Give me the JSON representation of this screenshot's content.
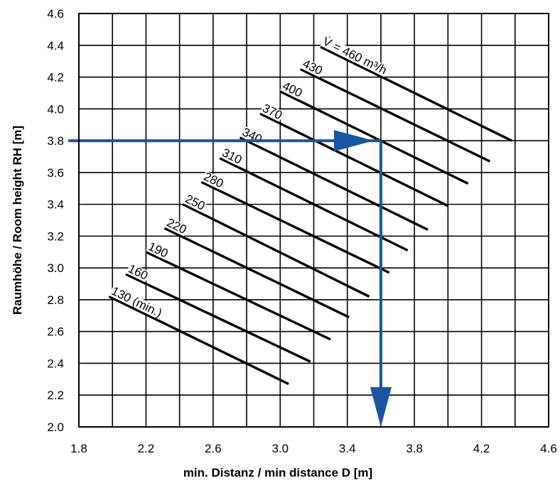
{
  "chart_data": {
    "type": "line",
    "xlabel": "min. Distanz / min distance  D [m]",
    "ylabel": "Raumhöhe / Room height  RH   [m]",
    "xlim": [
      1.8,
      4.6
    ],
    "ylim": [
      2.0,
      4.6
    ],
    "x_ticks": [
      "1.8",
      "2.2",
      "2.6",
      "3.0",
      "3.4",
      "3.8",
      "4.2",
      "4.6"
    ],
    "y_ticks": [
      "2.0",
      "2.2",
      "2.4",
      "2.6",
      "2.8",
      "3.0",
      "3.2",
      "3.4",
      "3.6",
      "3.8",
      "4.0",
      "4.2",
      "4.4",
      "4.6"
    ],
    "grid": true,
    "series": [
      {
        "name": "130 (min.)",
        "x": [
          1.98,
          3.05
        ],
        "y": [
          2.82,
          2.27
        ]
      },
      {
        "name": "160",
        "x": [
          2.08,
          3.18
        ],
        "y": [
          2.96,
          2.41
        ]
      },
      {
        "name": "190",
        "x": [
          2.2,
          3.3
        ],
        "y": [
          3.1,
          2.55
        ]
      },
      {
        "name": "220",
        "x": [
          2.31,
          3.41
        ],
        "y": [
          3.25,
          2.69
        ]
      },
      {
        "name": "250",
        "x": [
          2.42,
          3.53
        ],
        "y": [
          3.4,
          2.82
        ]
      },
      {
        "name": "280",
        "x": [
          2.53,
          3.65
        ],
        "y": [
          3.54,
          2.97
        ]
      },
      {
        "name": "310",
        "x": [
          2.64,
          3.76
        ],
        "y": [
          3.69,
          3.11
        ]
      },
      {
        "name": "340",
        "x": [
          2.76,
          3.88
        ],
        "y": [
          3.82,
          3.24
        ]
      },
      {
        "name": "370",
        "x": [
          2.88,
          4.0
        ],
        "y": [
          3.97,
          3.39
        ]
      },
      {
        "name": "400",
        "x": [
          3.0,
          4.12
        ],
        "y": [
          4.11,
          3.53
        ]
      },
      {
        "name": "430",
        "x": [
          3.12,
          4.25
        ],
        "y": [
          4.25,
          3.67
        ]
      },
      {
        "name": "V̇ = 460 m³/h",
        "x": [
          3.24,
          4.38
        ],
        "y": [
          4.39,
          3.8
        ]
      }
    ],
    "example_path": {
      "color": "#1a56a0",
      "x": [
        1.8,
        3.6,
        3.6
      ],
      "y": [
        3.8,
        3.8,
        2.0
      ]
    }
  }
}
